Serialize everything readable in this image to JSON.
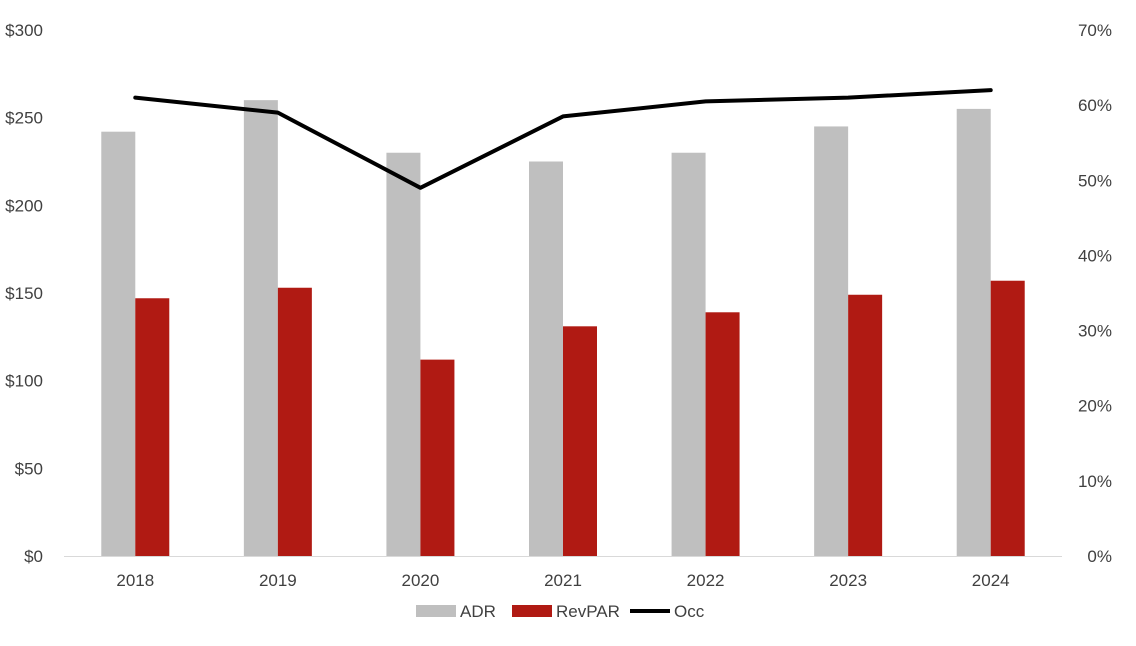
{
  "chart_data": {
    "type": "bar",
    "categories": [
      "2018",
      "2019",
      "2020",
      "2021",
      "2022",
      "2023",
      "2024"
    ],
    "series": [
      {
        "name": "ADR",
        "type": "bar",
        "axis": "left",
        "color": "#bfbfbf",
        "values": [
          242,
          260,
          230,
          225,
          230,
          245,
          255
        ]
      },
      {
        "name": "RevPAR",
        "type": "bar",
        "axis": "left",
        "color": "#b01a13",
        "values": [
          147,
          153,
          112,
          131,
          139,
          149,
          157
        ]
      },
      {
        "name": "Occ",
        "type": "line",
        "axis": "right",
        "color": "#000000",
        "values": [
          61,
          59,
          49,
          58.5,
          60.5,
          61,
          62
        ]
      }
    ],
    "y_left": {
      "min": 0,
      "max": 300,
      "step": 50,
      "tick_labels": [
        "$0",
        "$50",
        "$100",
        "$150",
        "$200",
        "$250",
        "$300"
      ]
    },
    "y_right": {
      "min": 0,
      "max": 70,
      "step": 10,
      "tick_labels": [
        "0%",
        "10%",
        "20%",
        "30%",
        "40%",
        "50%",
        "60%",
        "70%"
      ]
    },
    "grid": false,
    "legend": {
      "position": "bottom",
      "entries": [
        "ADR",
        "RevPAR",
        "Occ"
      ]
    }
  }
}
